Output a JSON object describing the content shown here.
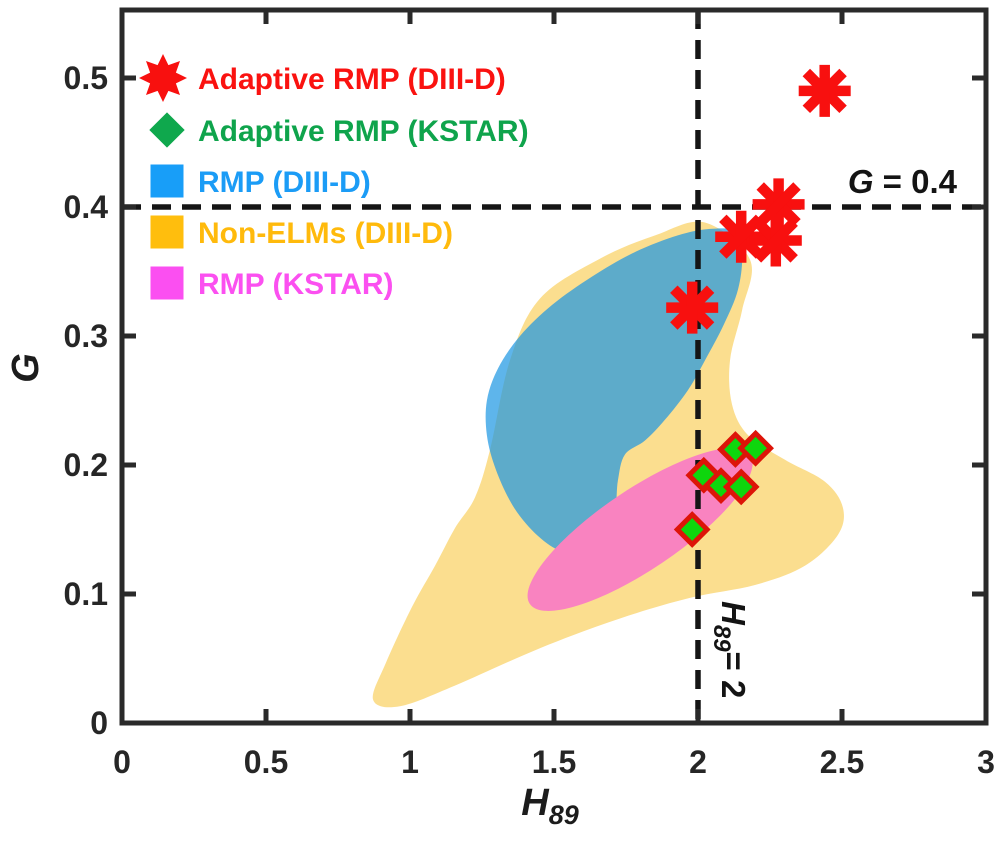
{
  "chart_data": {
    "type": "scatter",
    "title": "",
    "xlabel_main": "H",
    "xlabel_sub": "89",
    "ylabel": "G",
    "xlim": [
      0,
      3
    ],
    "ylim": [
      0,
      0.5527
    ],
    "x_ticks": [
      0,
      0.5,
      1,
      1.5,
      2,
      2.5,
      3
    ],
    "x_tick_labels": [
      "0",
      "0.5",
      "1",
      "1.5",
      "2",
      "2.5",
      "3"
    ],
    "y_ticks": [
      0,
      0.1,
      0.2,
      0.3,
      0.4,
      0.5
    ],
    "y_tick_labels": [
      "0",
      "0.1",
      "0.2",
      "0.3",
      "0.4",
      "0.5"
    ],
    "grid": false,
    "legend_position": "upper-left-inside",
    "frame_color": "#2a2a2a",
    "annotations": {
      "g_line": {
        "axis": "y",
        "value": 0.4,
        "parts": {
          "var": "G",
          "rest": " = 0.4"
        }
      },
      "h_line": {
        "axis": "x",
        "value": 2,
        "parts": {
          "var": "H",
          "sub": "89",
          "rest": "= 2"
        }
      },
      "line_color": "#151515"
    },
    "series": [
      {
        "name": "Adaptive RMP (DIII-D)",
        "marker": "star8",
        "color": "#F8100F",
        "points": [
          [
            2.44,
            0.49
          ],
          [
            2.28,
            0.402
          ],
          [
            2.15,
            0.377
          ],
          [
            2.27,
            0.374
          ],
          [
            1.98,
            0.322
          ]
        ]
      },
      {
        "name": "Adaptive RMP (KSTAR)",
        "marker": "diamond",
        "fill": "#0ED60D",
        "stroke": "#DD1408",
        "points": [
          [
            2.13,
            0.212
          ],
          [
            2.2,
            0.213
          ],
          [
            2.02,
            0.192
          ],
          [
            2.08,
            0.184
          ],
          [
            2.15,
            0.183
          ],
          [
            1.98,
            0.15
          ]
        ]
      }
    ],
    "regions": [
      {
        "name": "Non-ELMs (DIII-D)",
        "type": "blob",
        "fill": "#FBDE8F",
        "opacity": 1,
        "outline": [
          [
            2.024,
            0.388
          ],
          [
            2.181,
            0.359
          ],
          [
            2.153,
            0.32
          ],
          [
            2.111,
            0.281
          ],
          [
            2.118,
            0.247
          ],
          [
            2.174,
            0.223
          ],
          [
            2.302,
            0.204
          ],
          [
            2.441,
            0.187
          ],
          [
            2.503,
            0.167
          ],
          [
            2.486,
            0.146
          ],
          [
            2.372,
            0.122
          ],
          [
            2.198,
            0.107
          ],
          [
            1.972,
            0.097
          ],
          [
            1.729,
            0.081
          ],
          [
            1.451,
            0.058
          ],
          [
            1.156,
            0.029
          ],
          [
            0.965,
            0.013
          ],
          [
            0.872,
            0.018
          ],
          [
            0.917,
            0.047
          ],
          [
            1.007,
            0.09
          ],
          [
            1.087,
            0.122
          ],
          [
            1.156,
            0.151
          ],
          [
            1.226,
            0.175
          ],
          [
            1.278,
            0.212
          ],
          [
            1.347,
            0.281
          ],
          [
            1.451,
            0.329
          ],
          [
            1.66,
            0.36
          ],
          [
            1.851,
            0.378
          ]
        ]
      },
      {
        "name": "RMP (DIII-D)",
        "type": "blob",
        "fill": "#1A96E2",
        "opacity": 0.7,
        "outline": [
          [
            2.128,
            0.381
          ],
          [
            2.153,
            0.363
          ],
          [
            2.139,
            0.336
          ],
          [
            2.09,
            0.309
          ],
          [
            2.024,
            0.281
          ],
          [
            1.965,
            0.258
          ],
          [
            1.885,
            0.235
          ],
          [
            1.816,
            0.219
          ],
          [
            1.746,
            0.208
          ],
          [
            1.722,
            0.188
          ],
          [
            1.712,
            0.165
          ],
          [
            1.677,
            0.142
          ],
          [
            1.618,
            0.132
          ],
          [
            1.528,
            0.133
          ],
          [
            1.444,
            0.145
          ],
          [
            1.361,
            0.167
          ],
          [
            1.299,
            0.196
          ],
          [
            1.267,
            0.223
          ],
          [
            1.267,
            0.25
          ],
          [
            1.306,
            0.275
          ],
          [
            1.382,
            0.3
          ],
          [
            1.493,
            0.324
          ],
          [
            1.632,
            0.346
          ],
          [
            1.781,
            0.365
          ],
          [
            1.93,
            0.378
          ],
          [
            2.042,
            0.383
          ]
        ]
      },
      {
        "name": "RMP (KSTAR)",
        "type": "ellipse",
        "fill": "#F983C0",
        "opacity": 1,
        "center": [
          1.799,
          0.15
        ],
        "rx": 0.462,
        "ry": 0.031,
        "angle_deg": -34
      }
    ]
  },
  "legend": {
    "items": [
      {
        "marker": "star8",
        "color": "#F8100F",
        "label": "Adaptive RMP (DIII-D)",
        "label_color": "#FA1210"
      },
      {
        "marker": "diamond",
        "color": "#0FA84D",
        "label": "Adaptive RMP (KSTAR)",
        "label_color": "#0FA44C"
      },
      {
        "marker": "square",
        "color": "#189EF8",
        "label": "RMP (DIII-D)",
        "label_color": "#1B9CF6"
      },
      {
        "marker": "square",
        "color": "#FFBE0D",
        "label": "Non-ELMs (DIII-D)",
        "label_color": "#FFBA0C"
      },
      {
        "marker": "square",
        "color": "#FB4FF1",
        "label": "RMP (KSTAR)",
        "label_color": "#FB50F0"
      }
    ]
  }
}
